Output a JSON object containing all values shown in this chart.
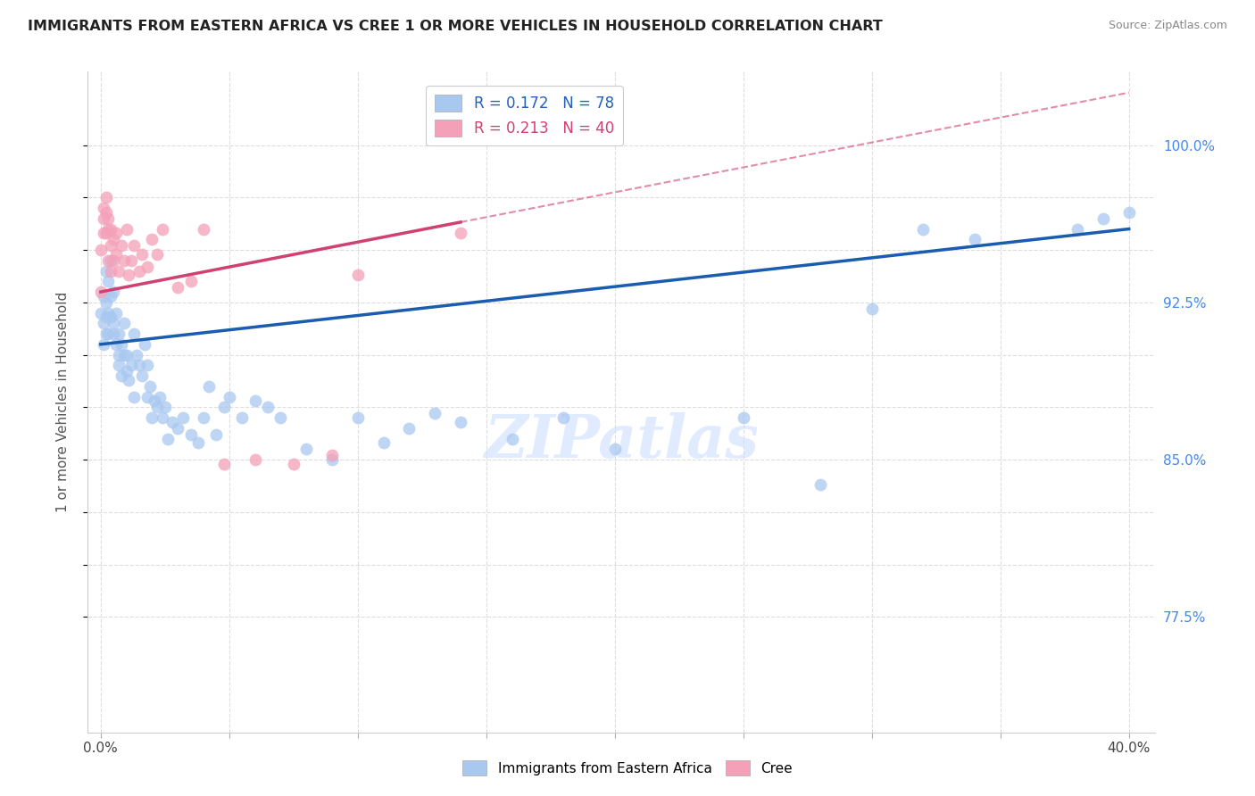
{
  "title": "IMMIGRANTS FROM EASTERN AFRICA VS CREE 1 OR MORE VEHICLES IN HOUSEHOLD CORRELATION CHART",
  "source": "Source: ZipAtlas.com",
  "ylabel": "1 or more Vehicles in Household",
  "blue_R": 0.172,
  "blue_N": 78,
  "pink_R": 0.213,
  "pink_N": 40,
  "blue_color": "#A8C8F0",
  "pink_color": "#F4A0B8",
  "blue_line_color": "#1A5CB0",
  "pink_line_color": "#D04070",
  "right_axis_color": "#4488EE",
  "legend_text_blue": "#2060C0",
  "legend_text_pink": "#D04070",
  "xlim": [
    0.0,
    0.4
  ],
  "ylim": [
    0.72,
    1.035
  ],
  "blue_points": [
    [
      0.0,
      0.92
    ],
    [
      0.001,
      0.928
    ],
    [
      0.001,
      0.915
    ],
    [
      0.001,
      0.905
    ],
    [
      0.002,
      0.925
    ],
    [
      0.002,
      0.918
    ],
    [
      0.002,
      0.91
    ],
    [
      0.002,
      0.94
    ],
    [
      0.003,
      0.92
    ],
    [
      0.003,
      0.935
    ],
    [
      0.003,
      0.91
    ],
    [
      0.004,
      0.928
    ],
    [
      0.004,
      0.918
    ],
    [
      0.004,
      0.945
    ],
    [
      0.005,
      0.93
    ],
    [
      0.005,
      0.915
    ],
    [
      0.005,
      0.91
    ],
    [
      0.006,
      0.905
    ],
    [
      0.006,
      0.92
    ],
    [
      0.007,
      0.895
    ],
    [
      0.007,
      0.91
    ],
    [
      0.007,
      0.9
    ],
    [
      0.008,
      0.905
    ],
    [
      0.008,
      0.89
    ],
    [
      0.009,
      0.9
    ],
    [
      0.009,
      0.915
    ],
    [
      0.01,
      0.9
    ],
    [
      0.01,
      0.892
    ],
    [
      0.011,
      0.888
    ],
    [
      0.012,
      0.895
    ],
    [
      0.013,
      0.88
    ],
    [
      0.013,
      0.91
    ],
    [
      0.014,
      0.9
    ],
    [
      0.015,
      0.895
    ],
    [
      0.016,
      0.89
    ],
    [
      0.017,
      0.905
    ],
    [
      0.018,
      0.895
    ],
    [
      0.018,
      0.88
    ],
    [
      0.019,
      0.885
    ],
    [
      0.02,
      0.87
    ],
    [
      0.021,
      0.878
    ],
    [
      0.022,
      0.875
    ],
    [
      0.023,
      0.88
    ],
    [
      0.024,
      0.87
    ],
    [
      0.025,
      0.875
    ],
    [
      0.026,
      0.86
    ],
    [
      0.028,
      0.868
    ],
    [
      0.03,
      0.865
    ],
    [
      0.032,
      0.87
    ],
    [
      0.035,
      0.862
    ],
    [
      0.038,
      0.858
    ],
    [
      0.04,
      0.87
    ],
    [
      0.042,
      0.885
    ],
    [
      0.045,
      0.862
    ],
    [
      0.048,
      0.875
    ],
    [
      0.05,
      0.88
    ],
    [
      0.055,
      0.87
    ],
    [
      0.06,
      0.878
    ],
    [
      0.065,
      0.875
    ],
    [
      0.07,
      0.87
    ],
    [
      0.08,
      0.855
    ],
    [
      0.09,
      0.85
    ],
    [
      0.1,
      0.87
    ],
    [
      0.11,
      0.858
    ],
    [
      0.12,
      0.865
    ],
    [
      0.13,
      0.872
    ],
    [
      0.14,
      0.868
    ],
    [
      0.16,
      0.86
    ],
    [
      0.18,
      0.87
    ],
    [
      0.2,
      0.855
    ],
    [
      0.25,
      0.87
    ],
    [
      0.28,
      0.838
    ],
    [
      0.3,
      0.922
    ],
    [
      0.32,
      0.96
    ],
    [
      0.34,
      0.955
    ],
    [
      0.38,
      0.96
    ],
    [
      0.39,
      0.965
    ],
    [
      0.4,
      0.968
    ]
  ],
  "pink_points": [
    [
      0.0,
      0.93
    ],
    [
      0.0,
      0.95
    ],
    [
      0.001,
      0.97
    ],
    [
      0.001,
      0.958
    ],
    [
      0.001,
      0.965
    ],
    [
      0.002,
      0.975
    ],
    [
      0.002,
      0.958
    ],
    [
      0.002,
      0.968
    ],
    [
      0.003,
      0.96
    ],
    [
      0.003,
      0.945
    ],
    [
      0.003,
      0.965
    ],
    [
      0.004,
      0.952
    ],
    [
      0.004,
      0.94
    ],
    [
      0.004,
      0.96
    ],
    [
      0.005,
      0.955
    ],
    [
      0.005,
      0.945
    ],
    [
      0.006,
      0.958
    ],
    [
      0.006,
      0.948
    ],
    [
      0.007,
      0.94
    ],
    [
      0.008,
      0.952
    ],
    [
      0.009,
      0.945
    ],
    [
      0.01,
      0.96
    ],
    [
      0.011,
      0.938
    ],
    [
      0.012,
      0.945
    ],
    [
      0.013,
      0.952
    ],
    [
      0.015,
      0.94
    ],
    [
      0.016,
      0.948
    ],
    [
      0.018,
      0.942
    ],
    [
      0.02,
      0.955
    ],
    [
      0.022,
      0.948
    ],
    [
      0.024,
      0.96
    ],
    [
      0.03,
      0.932
    ],
    [
      0.035,
      0.935
    ],
    [
      0.04,
      0.96
    ],
    [
      0.048,
      0.848
    ],
    [
      0.06,
      0.85
    ],
    [
      0.075,
      0.848
    ],
    [
      0.09,
      0.852
    ],
    [
      0.1,
      0.938
    ],
    [
      0.14,
      0.958
    ]
  ],
  "ytick_positions": [
    0.775,
    0.8,
    0.825,
    0.85,
    0.875,
    0.9,
    0.925,
    0.95,
    0.975,
    1.0
  ],
  "ytick_labels": [
    "77.5%",
    "",
    "",
    "85.0%",
    "",
    "",
    "92.5%",
    "",
    "",
    "100.0%"
  ],
  "xtick_positions": [
    0.0,
    0.05,
    0.1,
    0.15,
    0.2,
    0.25,
    0.3,
    0.35,
    0.4
  ],
  "xtick_labels": [
    "0.0%",
    "",
    "",
    "",
    "",
    "",
    "",
    "",
    "40.0%"
  ]
}
